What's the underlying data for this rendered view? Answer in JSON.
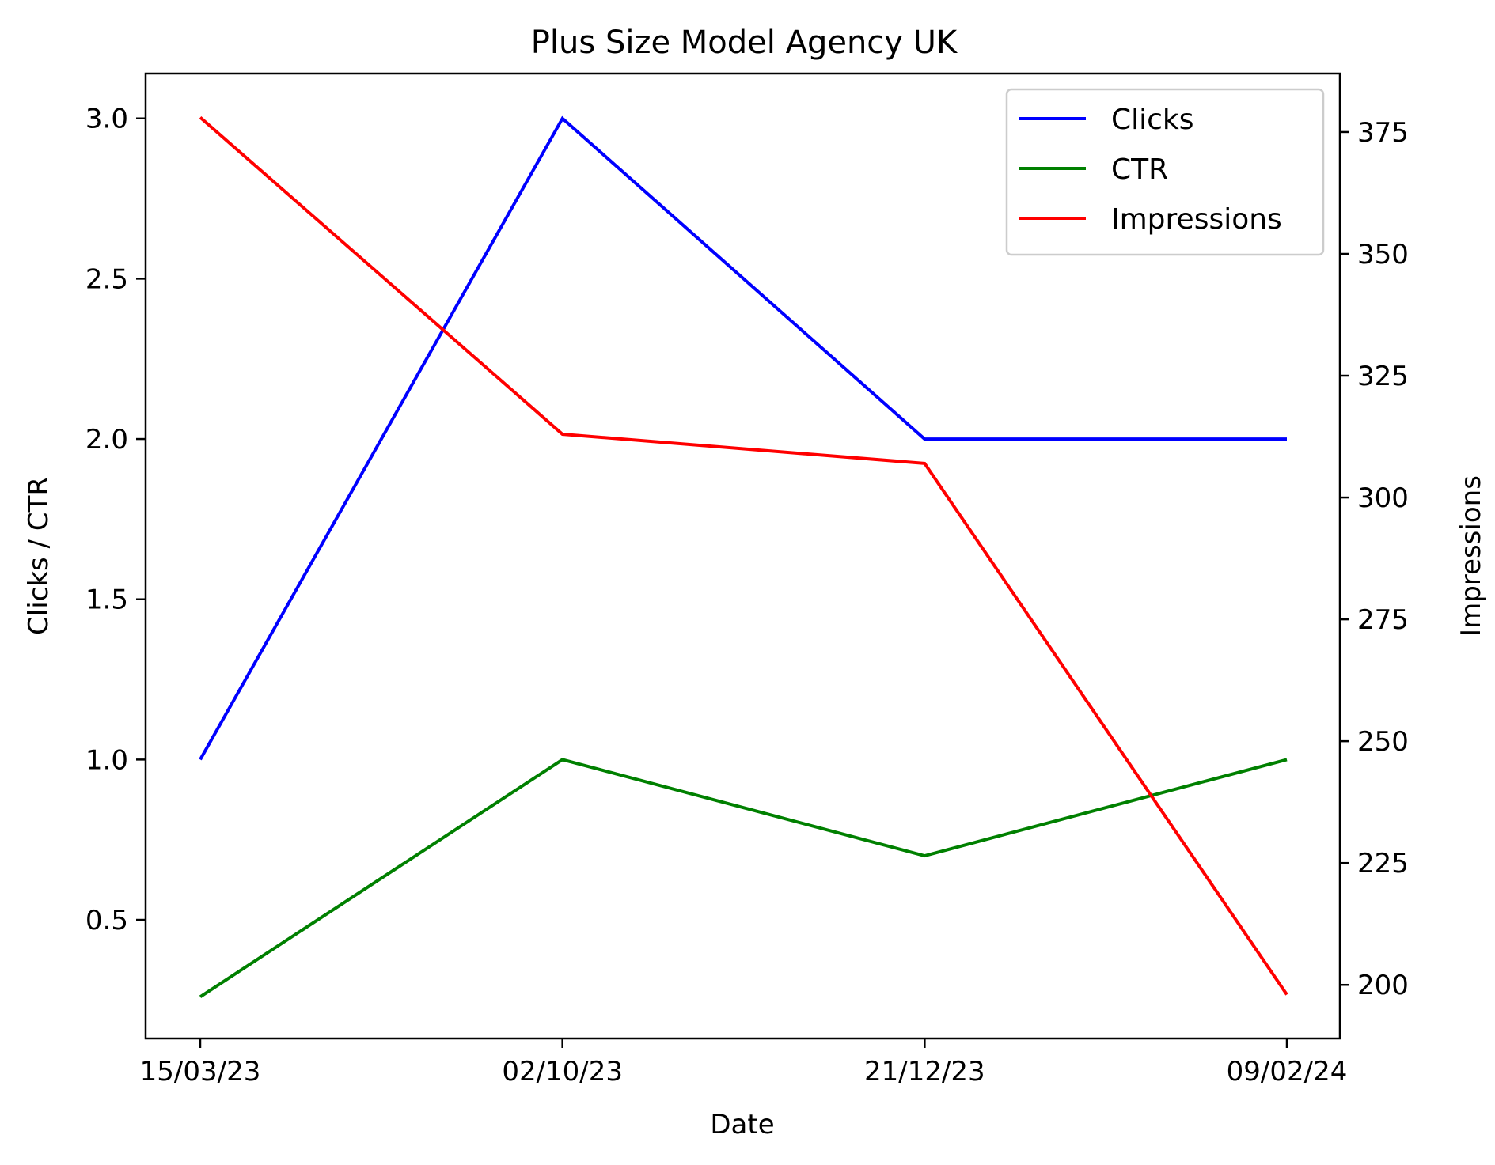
{
  "chart_data": {
    "type": "line",
    "title": "Plus Size Model Agency UK",
    "xlabel": "Date",
    "ylabel_left": "Clicks / CTR",
    "ylabel_right": "Impressions",
    "categories": [
      "15/03/23",
      "02/10/23",
      "21/12/23",
      "09/02/24"
    ],
    "series": [
      {
        "name": "Clicks",
        "axis": "left",
        "color": "#0000ff",
        "values": [
          1,
          3,
          2,
          2
        ]
      },
      {
        "name": "CTR",
        "axis": "left",
        "color": "#008000",
        "values": [
          0.26,
          1.0,
          0.7,
          1.0
        ]
      },
      {
        "name": "Impressions",
        "axis": "right",
        "color": "#ff0000",
        "values": [
          378,
          313,
          307,
          198
        ]
      }
    ],
    "ylim_left": [
      0.13,
      3.14
    ],
    "ylim_right": [
      189,
      387
    ],
    "yticks_left": [
      "0.5",
      "1.0",
      "1.5",
      "2.0",
      "2.5",
      "3.0"
    ],
    "yticks_right": [
      "200",
      "225",
      "250",
      "275",
      "300",
      "325",
      "350",
      "375"
    ],
    "legend_position": "top-right",
    "grid": false
  }
}
